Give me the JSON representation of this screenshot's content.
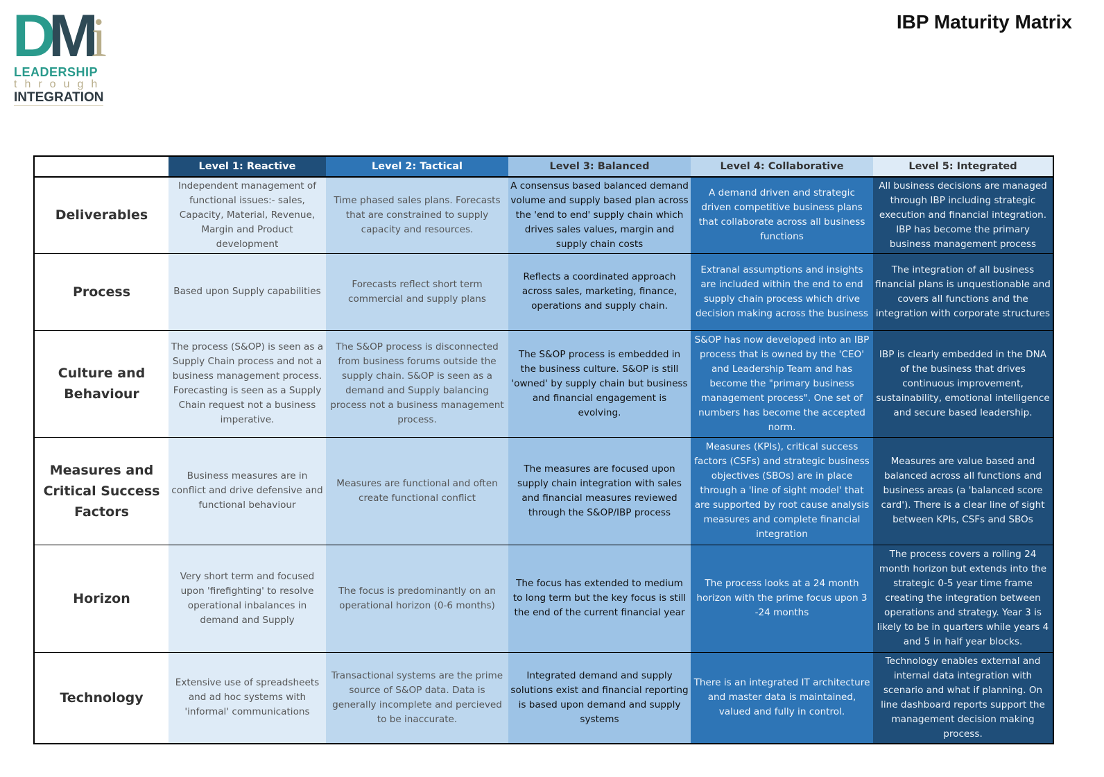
{
  "logo": {
    "letters": "DMi",
    "line1": "LEADERSHIP",
    "line2": "through",
    "line3": "INTEGRATION"
  },
  "title": "IBP Maturity Matrix",
  "levels": [
    "Level 1: Reactive",
    "Level 2: Tactical",
    "Level 3: Balanced",
    "Level 4: Collaborative",
    "Level 5: Integrated"
  ],
  "rows": [
    {
      "label": "Deliverables",
      "cells": [
        "Independent management of functional issues:- sales, Capacity, Material, Revenue, Margin and Product development",
        "Time phased sales plans. Forecasts that are constrained to supply capacity and resources.",
        "A consensus based balanced demand volume and supply based plan across the 'end to end' supply chain which drives sales values, margin and supply chain costs",
        "A demand driven and strategic driven competitive business plans that collaborate across all business functions",
        "All business decisions are managed through IBP including strategic execution and financial integration. IBP has become the primary business management process"
      ]
    },
    {
      "label": "Process",
      "cells": [
        "Based upon Supply capabilities",
        "Forecasts reflect short term commercial and supply plans",
        "Reflects a coordinated approach across sales, marketing, finance, operations and supply chain.",
        "Extranal assumptions and insights are included within the end to end supply chain process which drive decision making across the business",
        "The integration of all business financial plans is unquestionable and covers all functions and the integration with corporate structures"
      ]
    },
    {
      "label": "Culture and Behaviour",
      "cells": [
        "The process (S&OP) is seen as a Supply Chain process and not a business management process. Forecasting is seen as a Supply Chain request not a business imperative.",
        "The S&OP process is disconnected from business forums outside the supply chain. S&OP is seen as a demand and Supply balancing process not a business management process.",
        "The S&OP process is embedded in the business culture. S&OP is still 'owned' by supply chain but business and financial engagement is evolving.",
        "S&OP has now developed into an IBP process that is owned by the 'CEO' and Leadership Team and has become the \"primary business management process\". One set of numbers has become the accepted norm.",
        "IBP is clearly embedded in the DNA of the business that drives continuous improvement, sustainability, emotional intelligence and secure based leadership."
      ]
    },
    {
      "label": "Measures and Critical Success Factors",
      "cells": [
        "Business measures are in conflict and drive defensive and functional behaviour",
        "Measures are functional and often create functional conflict",
        "The measures are focused upon supply chain integration with sales and financial measures reviewed through the S&OP/IBP process",
        "Measures (KPIs), critical success factors (CSFs) and strategic business objectives (SBOs) are in place through a 'line of sight model' that are supported by  root cause analysis measures and complete financial integration",
        "Measures are value based and balanced across all functions and business areas (a 'balanced score card'). There is a clear line of sight between KPIs, CSFs and SBOs"
      ]
    },
    {
      "label": "Horizon",
      "cells": [
        "Very short term and focused upon 'firefighting' to resolve operational inbalances in demand and Supply",
        "The focus is predominantly on an operational horizon (0-6 months)",
        "The focus has extended to medium to long term but the key focus is still the end of the current financial year",
        "The process looks at a 24 month horizon with the prime focus upon 3 -24 months",
        "The process covers a rolling 24 month horizon but extends into the strategic 0-5 year time frame creating the integration between operations and strategy. Year 3 is likely to be in quarters while years 4 and 5 in half year blocks."
      ]
    },
    {
      "label": "Technology",
      "cells": [
        "Extensive use of spreadsheets and ad hoc systems with 'informal' communications",
        "Transactional systems are the prime source of S&OP data. Data is generally incomplete and percieved to be inaccurate.",
        "Integrated demand and supply solutions exist and financial reporting is based upon demand and supply systems",
        "There is an integrated IT architecture and master data is maintained, valued and fully in control.",
        "Technology enables external and internal data integration with scenario and what if planning. On line dashboard reports support the management decision making process."
      ]
    }
  ]
}
